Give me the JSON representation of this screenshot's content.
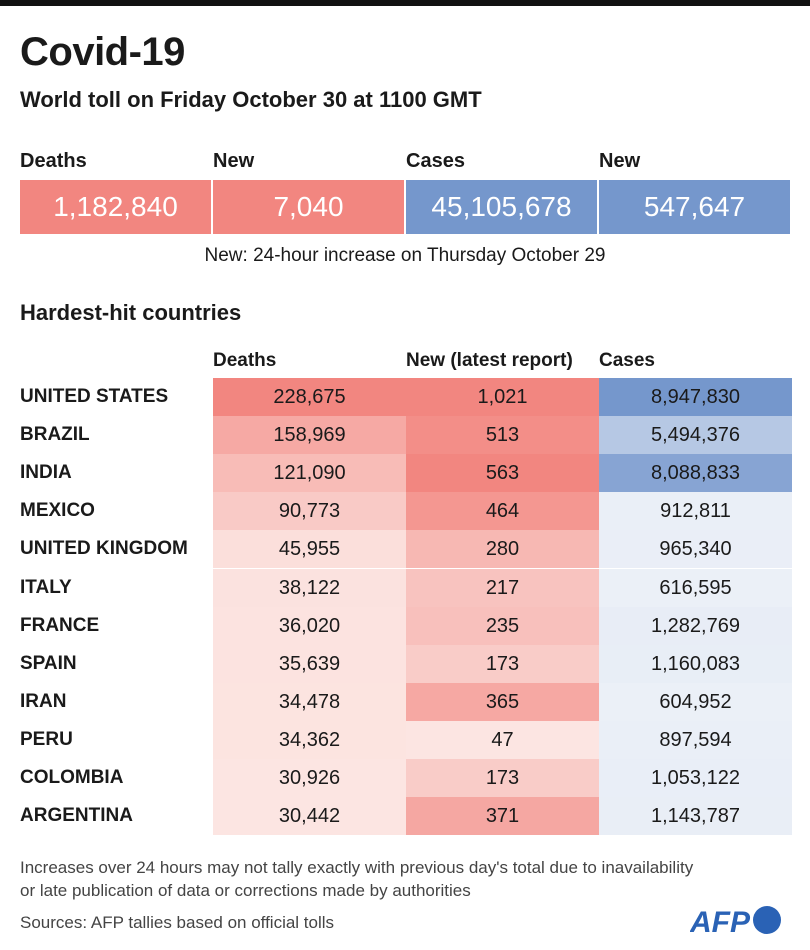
{
  "title": "Covid-19",
  "subtitle": "World toll on Friday October 30 at 1100 GMT",
  "kpis": [
    {
      "label": "Deaths",
      "value": "1,182,840"
    },
    {
      "label": "New",
      "value": "7,040"
    },
    {
      "label": "Cases",
      "value": "45,105,678"
    },
    {
      "label": "New",
      "value": "547,647"
    }
  ],
  "note": "New: 24-hour increase on Thursday October 29",
  "section_title": "Hardest-hit countries",
  "columns": [
    "Deaths",
    "New (latest report)",
    "Cases"
  ],
  "rows": [
    {
      "country": "UNITED STATES",
      "deaths": "228,675",
      "new": "1,021",
      "cases": "8,947,830"
    },
    {
      "country": "BRAZIL",
      "deaths": "158,969",
      "new": "513",
      "cases": "5,494,376"
    },
    {
      "country": "INDIA",
      "deaths": "121,090",
      "new": "563",
      "cases": "8,088,833"
    },
    {
      "country": "MEXICO",
      "deaths": "90,773",
      "new": "464",
      "cases": "912,811"
    },
    {
      "country": "UNITED KINGDOM",
      "deaths": "45,955",
      "new": "280",
      "cases": "965,340"
    },
    {
      "country": "ITALY",
      "deaths": "38,122",
      "new": "217",
      "cases": "616,595"
    },
    {
      "country": "FRANCE",
      "deaths": "36,020",
      "new": "235",
      "cases": "1,282,769"
    },
    {
      "country": "SPAIN",
      "deaths": "35,639",
      "new": "173",
      "cases": "1,160,083"
    },
    {
      "country": "IRAN",
      "deaths": "34,478",
      "new": "365",
      "cases": "604,952"
    },
    {
      "country": "PERU",
      "deaths": "34,362",
      "new": "47",
      "cases": "897,594"
    },
    {
      "country": "COLOMBIA",
      "deaths": "30,926",
      "new": "173",
      "cases": "1,053,122"
    },
    {
      "country": "ARGENTINA",
      "deaths": "30,442",
      "new": "371",
      "cases": "1,143,787"
    }
  ],
  "footnote": "Increases over 24 hours may not tally exactly with previous day's total due to inavailability or late publication of data or corrections made by authorities",
  "sources": "Sources: AFP tallies based on official tolls",
  "logo": "AFP",
  "colors": {
    "red": "#f28680",
    "red_light": "#fdf1ee",
    "blue": "#7597cc",
    "blue_light": "#edf1f8"
  }
}
